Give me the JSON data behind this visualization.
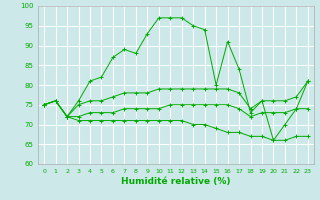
{
  "xlabel": "Humidité relative (%)",
  "background_color": "#cce8e8",
  "grid_color": "#ffffff",
  "line_color": "#00aa00",
  "xlim": [
    -0.5,
    23.5
  ],
  "ylim": [
    60,
    100
  ],
  "yticks": [
    60,
    65,
    70,
    75,
    80,
    85,
    90,
    95,
    100
  ],
  "xticks": [
    0,
    1,
    2,
    3,
    4,
    5,
    6,
    7,
    8,
    9,
    10,
    11,
    12,
    13,
    14,
    15,
    16,
    17,
    18,
    19,
    20,
    21,
    22,
    23
  ],
  "series": [
    [
      75,
      76,
      72,
      76,
      81,
      82,
      87,
      89,
      88,
      93,
      97,
      97,
      97,
      95,
      94,
      80,
      91,
      84,
      73,
      76,
      66,
      70,
      74,
      81
    ],
    [
      75,
      76,
      72,
      75,
      76,
      76,
      77,
      78,
      78,
      78,
      79,
      79,
      79,
      79,
      79,
      79,
      79,
      78,
      74,
      76,
      76,
      76,
      77,
      81
    ],
    [
      75,
      76,
      72,
      72,
      73,
      73,
      73,
      74,
      74,
      74,
      74,
      75,
      75,
      75,
      75,
      75,
      75,
      74,
      72,
      73,
      73,
      73,
      74,
      74
    ],
    [
      75,
      76,
      72,
      71,
      71,
      71,
      71,
      71,
      71,
      71,
      71,
      71,
      71,
      70,
      70,
      69,
      68,
      68,
      67,
      67,
      66,
      66,
      67,
      67
    ]
  ]
}
